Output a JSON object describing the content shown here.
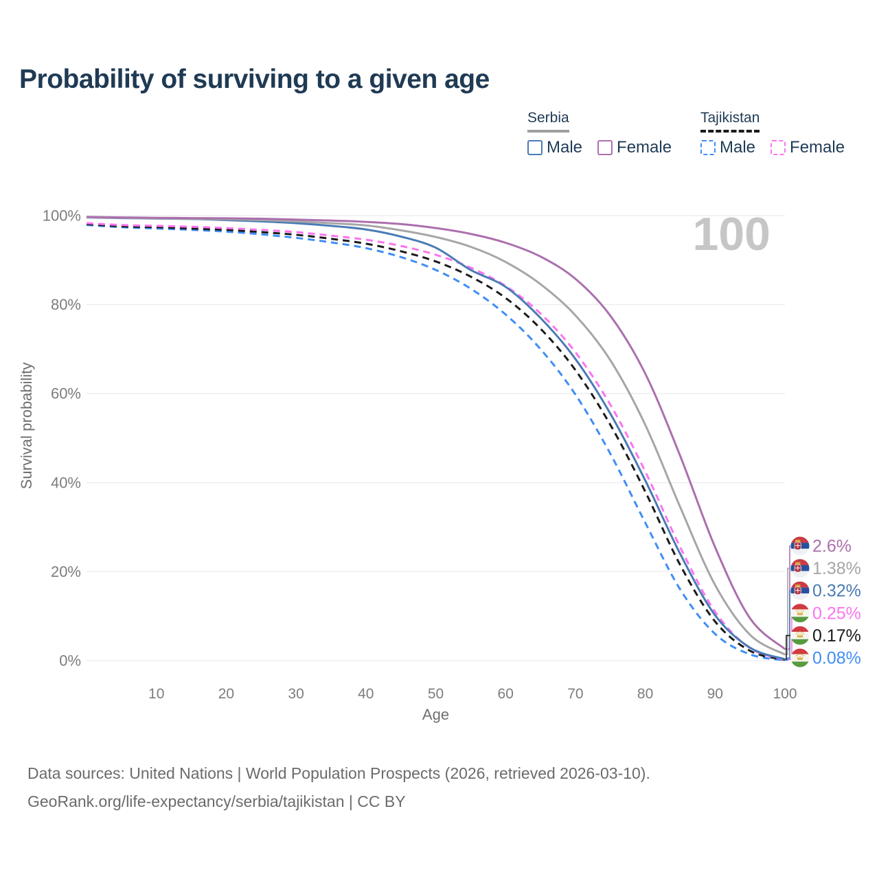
{
  "title": "Probability of surviving to a given age",
  "legend": {
    "groups": [
      {
        "id": "serbia",
        "label": "Serbia",
        "line_style": "solid",
        "line_color": "#9e9e9e",
        "items": [
          {
            "label": "Male",
            "color": "#4a7bb5",
            "style": "solid"
          },
          {
            "label": "Female",
            "color": "#ab6fad",
            "style": "solid"
          }
        ]
      },
      {
        "id": "tajikistan",
        "label": "Tajikistan",
        "line_style": "dashed",
        "line_color": "#1a1a1a",
        "items": [
          {
            "label": "Male",
            "color": "#3f8ef5",
            "style": "dashed"
          },
          {
            "label": "Female",
            "color": "#fc74ef",
            "style": "dashed"
          }
        ]
      }
    ]
  },
  "chart_data": {
    "type": "line",
    "title": "Probability of surviving to a given age",
    "xlabel": "Age",
    "ylabel": "Survival probability",
    "xlim": [
      0,
      100
    ],
    "ylim": [
      0,
      100
    ],
    "grid": "horizontal",
    "legend_position": "top-right",
    "watermark": "100",
    "x_ticks": [
      10,
      20,
      30,
      40,
      50,
      60,
      70,
      80,
      90,
      100
    ],
    "y_tick_labels": [
      "0%",
      "20%",
      "40%",
      "60%",
      "80%",
      "100%"
    ],
    "y_tick_values": [
      0,
      20,
      40,
      60,
      80,
      100
    ],
    "x": [
      0,
      5,
      10,
      15,
      20,
      25,
      30,
      35,
      40,
      45,
      50,
      55,
      60,
      65,
      70,
      75,
      80,
      85,
      90,
      95,
      100
    ],
    "series": [
      {
        "name": "Serbia Female",
        "country": "Serbia",
        "sex": "female",
        "color": "#ab6fad",
        "dash": false,
        "flag": "serbia",
        "end_label": "2.6%",
        "values": [
          99.7,
          99.6,
          99.5,
          99.45,
          99.4,
          99.3,
          99.1,
          98.9,
          98.6,
          98.1,
          97.2,
          95.9,
          93.9,
          90.8,
          85.8,
          77.5,
          64.5,
          46.0,
          25.5,
          9.5,
          2.6
        ]
      },
      {
        "name": "Serbia Both sexes",
        "country": "Serbia",
        "sex": "total",
        "color": "#a6a6a6",
        "dash": false,
        "flag": "serbia",
        "end_label": "1.38%",
        "values": [
          99.65,
          99.5,
          99.4,
          99.3,
          99.2,
          99.0,
          98.7,
          98.3,
          97.8,
          96.7,
          95.2,
          93.0,
          89.6,
          84.6,
          77.6,
          67.5,
          53.0,
          34.5,
          17.0,
          5.8,
          1.38
        ]
      },
      {
        "name": "Serbia Male",
        "country": "Serbia",
        "sex": "male",
        "color": "#4a7bb5",
        "dash": false,
        "flag": "serbia",
        "end_label": "0.32%",
        "values": [
          99.6,
          99.45,
          99.35,
          99.25,
          99.0,
          98.7,
          98.3,
          97.7,
          96.9,
          95.3,
          92.8,
          87.8,
          84.0,
          77.0,
          67.8,
          55.5,
          40.5,
          24.0,
          10.2,
          2.9,
          0.32
        ]
      },
      {
        "name": "Tajikistan Female",
        "country": "Tajikistan",
        "sex": "female",
        "color": "#fc74ef",
        "dash": true,
        "flag": "tajikistan",
        "end_label": "0.25%",
        "values": [
          98.3,
          97.9,
          97.7,
          97.5,
          97.2,
          96.8,
          96.3,
          95.5,
          94.6,
          93.2,
          91.2,
          88.3,
          84.2,
          78.0,
          69.3,
          57.5,
          42.5,
          25.5,
          11.0,
          2.8,
          0.25
        ]
      },
      {
        "name": "Tajikistan Both sexes",
        "country": "Tajikistan",
        "sex": "total",
        "color": "#1a1a1a",
        "dash": true,
        "flag": "tajikistan",
        "end_label": "0.17%",
        "values": [
          98.1,
          97.6,
          97.4,
          97.1,
          96.8,
          96.3,
          95.7,
          94.8,
          93.7,
          92.0,
          89.7,
          86.3,
          81.5,
          74.6,
          65.3,
          53.0,
          38.0,
          21.5,
          8.8,
          2.2,
          0.17
        ]
      },
      {
        "name": "Tajikistan Male",
        "country": "Tajikistan",
        "sex": "male",
        "color": "#3f8ef5",
        "dash": true,
        "flag": "tajikistan",
        "end_label": "0.08%",
        "values": [
          97.9,
          97.4,
          97.1,
          96.8,
          96.4,
          95.8,
          95.0,
          94.0,
          92.7,
          90.7,
          87.8,
          83.6,
          77.8,
          70.0,
          59.8,
          46.5,
          31.0,
          16.0,
          6.0,
          1.4,
          0.08
        ]
      }
    ]
  },
  "theme": {
    "title_color": "#1f3a54",
    "legend_text_color": "#1f3a54",
    "axis_text_color": "#7c7c7c",
    "axis_title_color": "#6e6e6e",
    "grid_color": "#ebebeb",
    "watermark_color": "#c6c6c6",
    "footer_color": "#6b6b6b",
    "flag_colors": {
      "serbia": [
        "#cb3b46",
        "#27519e",
        "#eef0f3"
      ],
      "tajikistan": [
        "#d23a42",
        "#f5f4ef",
        "#579a40"
      ]
    }
  },
  "footer": {
    "line1": "Data sources: United Nations | World Population Prospects (2026, retrieved 2026-03-10).",
    "line2": "GeoRank.org/life-expectancy/serbia/tajikistan | CC BY"
  }
}
